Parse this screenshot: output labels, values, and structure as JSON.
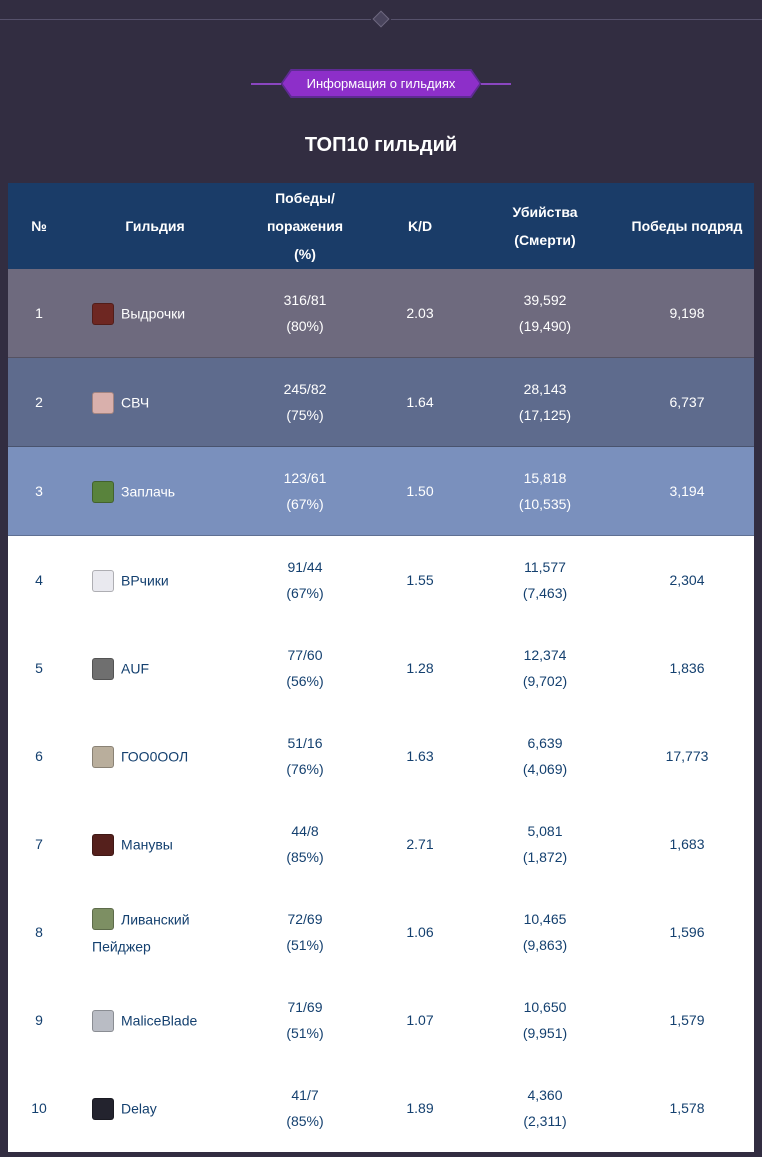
{
  "page": {
    "section_badge": "Информация о гильдиях",
    "title": "ТОП10 гильдий",
    "colors": {
      "background": "#322d41",
      "badge_fill": "#8d2fc9",
      "badge_border": "#5e2b93",
      "accent_line": "#8a46c0"
    }
  },
  "table": {
    "colors": {
      "header_bg": "#1a3c68",
      "rank1_bg": "#6e6a7e",
      "rank2_bg": "#5e6b8d",
      "rank3_bg": "#7a90bd",
      "row_bg": "#ffffff",
      "row_text": "#14406f"
    },
    "headers": {
      "rank": "№",
      "guild": "Гильдия",
      "winloss": "Победы/\nпоражения\n(%)",
      "kd": "K/D",
      "kills": "Убийства\n(Смерти)",
      "streak": "Победы подряд"
    },
    "rows": [
      {
        "rank": "1",
        "name": "Выдрочки",
        "winloss": "316/81",
        "winloss_pct": "(80%)",
        "kd": "2.03",
        "kills": "39,592",
        "deaths": "(19,490)",
        "streak": "9,198",
        "emblem_color": "#6e2722"
      },
      {
        "rank": "2",
        "name": "СВЧ",
        "winloss": "245/82",
        "winloss_pct": "(75%)",
        "kd": "1.64",
        "kills": "28,143",
        "deaths": "(17,125)",
        "streak": "6,737",
        "emblem_color": "#d9b0ac"
      },
      {
        "rank": "3",
        "name": "Заплачь",
        "winloss": "123/61",
        "winloss_pct": "(67%)",
        "kd": "1.50",
        "kills": "15,818",
        "deaths": "(10,535)",
        "streak": "3,194",
        "emblem_color": "#59833c"
      },
      {
        "rank": "4",
        "name": "ВРчики",
        "winloss": "91/44",
        "winloss_pct": "(67%)",
        "kd": "1.55",
        "kills": "11,577",
        "deaths": "(7,463)",
        "streak": "2,304",
        "emblem_color": "#e9e9ef"
      },
      {
        "rank": "5",
        "name": "AUF",
        "winloss": "77/60",
        "winloss_pct": "(56%)",
        "kd": "1.28",
        "kills": "12,374",
        "deaths": "(9,702)",
        "streak": "1,836",
        "emblem_color": "#6f6f6f"
      },
      {
        "rank": "6",
        "name": "ГОО0ООЛ",
        "winloss": "51/16",
        "winloss_pct": "(76%)",
        "kd": "1.63",
        "kills": "6,639",
        "deaths": "(4,069)",
        "streak": "17,773",
        "emblem_color": "#b9ae9c"
      },
      {
        "rank": "7",
        "name": "Манувы",
        "winloss": "44/8",
        "winloss_pct": "(85%)",
        "kd": "2.71",
        "kills": "5,081",
        "deaths": "(1,872)",
        "streak": "1,683",
        "emblem_color": "#55201c"
      },
      {
        "rank": "8",
        "name": "Ливанский Пейджер",
        "winloss": "72/69",
        "winloss_pct": "(51%)",
        "kd": "1.06",
        "kills": "10,465",
        "deaths": "(9,863)",
        "streak": "1,596",
        "emblem_color": "#7d8f63"
      },
      {
        "rank": "9",
        "name": "MaliceBlade",
        "winloss": "71/69",
        "winloss_pct": "(51%)",
        "kd": "1.07",
        "kills": "10,650",
        "deaths": "(9,951)",
        "streak": "1,579",
        "emblem_color": "#b9bcc4"
      },
      {
        "rank": "10",
        "name": "Delay",
        "winloss": "41/7",
        "winloss_pct": "(85%)",
        "kd": "1.89",
        "kills": "4,360",
        "deaths": "(2,311)",
        "streak": "1,578",
        "emblem_color": "#23232e"
      }
    ]
  }
}
